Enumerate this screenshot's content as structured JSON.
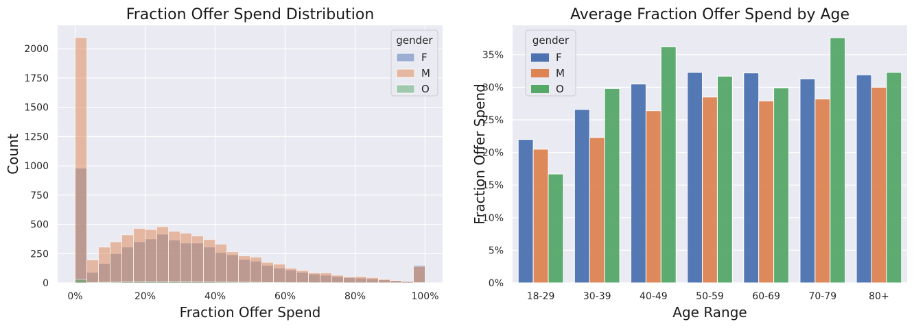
{
  "colors": {
    "F": "#4c72b0",
    "M": "#dd8452",
    "O": "#55a868",
    "panel_bg": "#eaeaf2",
    "grid": "#ffffff"
  },
  "chart_data": [
    {
      "type": "bar",
      "subtype": "overlaid-histogram",
      "title": "Fraction Offer Spend Distribution",
      "xlabel": "Fraction Offer Spend",
      "ylabel": "Count",
      "xlim": [
        -0.05,
        1.05
      ],
      "ylim": [
        0,
        2200
      ],
      "x_ticks": [
        0,
        0.2,
        0.4,
        0.6,
        0.8,
        1.0
      ],
      "x_tick_labels": [
        "0%",
        "20%",
        "40%",
        "60%",
        "80%",
        "100%"
      ],
      "y_ticks": [
        0,
        250,
        500,
        750,
        1000,
        1250,
        1500,
        1750,
        2000
      ],
      "y_tick_labels": [
        "0",
        "250",
        "500",
        "750",
        "1000",
        "1250",
        "1500",
        "1750",
        "2000"
      ],
      "grid": true,
      "legend": {
        "title": "gender",
        "position": "top-right",
        "entries": [
          "F",
          "M",
          "O"
        ]
      },
      "bin_edges": [
        0,
        0.0333,
        0.0667,
        0.1,
        0.1333,
        0.1667,
        0.2,
        0.2333,
        0.2667,
        0.3,
        0.3333,
        0.3667,
        0.4,
        0.4333,
        0.4667,
        0.5,
        0.5333,
        0.5667,
        0.6,
        0.6333,
        0.6667,
        0.7,
        0.7333,
        0.7667,
        0.8,
        0.8333,
        0.8667,
        0.9,
        0.9333,
        0.9667,
        1.0
      ],
      "series": [
        {
          "name": "F",
          "values": [
            980,
            90,
            165,
            250,
            305,
            350,
            375,
            415,
            365,
            340,
            340,
            305,
            260,
            240,
            200,
            185,
            150,
            125,
            110,
            90,
            75,
            65,
            55,
            45,
            40,
            35,
            25,
            20,
            15,
            150
          ]
        },
        {
          "name": "M",
          "values": [
            2095,
            195,
            305,
            350,
            410,
            465,
            455,
            480,
            440,
            425,
            400,
            370,
            330,
            265,
            230,
            220,
            175,
            160,
            125,
            105,
            85,
            85,
            65,
            50,
            55,
            45,
            30,
            20,
            10,
            140
          ]
        },
        {
          "name": "O",
          "values": [
            30,
            3,
            5,
            6,
            8,
            9,
            10,
            10,
            9,
            9,
            8,
            8,
            7,
            6,
            6,
            5,
            4,
            4,
            3,
            3,
            2,
            2,
            2,
            1,
            1,
            1,
            1,
            1,
            0,
            3
          ]
        }
      ]
    },
    {
      "type": "bar",
      "title": "Average Fraction Offer Spend by Age",
      "xlabel": "Age Range",
      "ylabel": "Fraction Offer Spend",
      "categories": [
        "18-29",
        "30-39",
        "40-49",
        "50-59",
        "60-69",
        "70-79",
        "80+"
      ],
      "ylim": [
        0,
        0.395
      ],
      "y_ticks": [
        0,
        0.05,
        0.1,
        0.15,
        0.2,
        0.25,
        0.3,
        0.35
      ],
      "y_tick_labels": [
        "0%",
        "5%",
        "10%",
        "15%",
        "20%",
        "25%",
        "30%",
        "35%"
      ],
      "grid": true,
      "legend": {
        "title": "gender",
        "position": "top-left",
        "entries": [
          "F",
          "M",
          "O"
        ]
      },
      "series": [
        {
          "name": "F",
          "values": [
            0.22,
            0.266,
            0.305,
            0.323,
            0.322,
            0.313,
            0.319
          ]
        },
        {
          "name": "M",
          "values": [
            0.205,
            0.223,
            0.264,
            0.285,
            0.279,
            0.282,
            0.3
          ]
        },
        {
          "name": "O",
          "values": [
            0.167,
            0.298,
            0.362,
            0.317,
            0.299,
            0.376,
            0.323
          ]
        }
      ]
    }
  ]
}
